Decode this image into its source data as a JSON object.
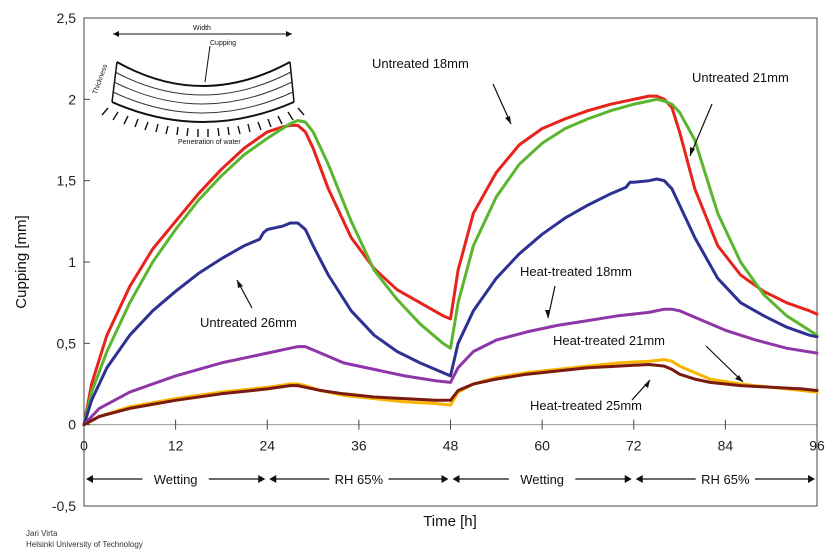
{
  "chart_data": {
    "type": "line",
    "xlabel": "Time [h]",
    "ylabel": "Cupping [mm]",
    "xlim": [
      0,
      96
    ],
    "ylim": [
      -0.5,
      2.5
    ],
    "x_ticks": [
      "0",
      "12",
      "24",
      "36",
      "48",
      "60",
      "72",
      "84",
      "96"
    ],
    "y_ticks": [
      "-0,5",
      "0",
      "0,5",
      "1",
      "1,5",
      "2",
      "2,5"
    ],
    "grid": false,
    "series": [
      {
        "name": "Untreated 18mm",
        "color": "#e8231c",
        "x": [
          0,
          1,
          3,
          6,
          9,
          12,
          15,
          18,
          21,
          24,
          26,
          27,
          28,
          29,
          30,
          32,
          35,
          38,
          41,
          44,
          47,
          48,
          49,
          51,
          54,
          57,
          60,
          63,
          66,
          69,
          72,
          74,
          75,
          76,
          77,
          78,
          80,
          83,
          86,
          89,
          92,
          95,
          96
        ],
        "y": [
          0,
          0.25,
          0.55,
          0.85,
          1.08,
          1.25,
          1.42,
          1.57,
          1.7,
          1.8,
          1.83,
          1.84,
          1.84,
          1.8,
          1.7,
          1.45,
          1.15,
          0.96,
          0.83,
          0.75,
          0.67,
          0.65,
          0.95,
          1.3,
          1.55,
          1.72,
          1.82,
          1.88,
          1.93,
          1.97,
          2,
          2.02,
          2.02,
          2,
          1.95,
          1.8,
          1.45,
          1.1,
          0.92,
          0.82,
          0.75,
          0.7,
          0.68
        ]
      },
      {
        "name": "Untreated 21mm",
        "color": "#5cb52e",
        "x": [
          0,
          1,
          3,
          6,
          9,
          12,
          15,
          18,
          21,
          24,
          26,
          27,
          28,
          29,
          30,
          32,
          35,
          38,
          41,
          44,
          47,
          48,
          49,
          51,
          54,
          57,
          60,
          63,
          66,
          69,
          72,
          74,
          75,
          76,
          77,
          78,
          80,
          83,
          86,
          89,
          92,
          95,
          96
        ],
        "y": [
          0,
          0.2,
          0.45,
          0.75,
          1.0,
          1.2,
          1.38,
          1.53,
          1.66,
          1.76,
          1.82,
          1.85,
          1.87,
          1.86,
          1.8,
          1.6,
          1.25,
          0.95,
          0.77,
          0.62,
          0.5,
          0.47,
          0.75,
          1.1,
          1.4,
          1.6,
          1.73,
          1.82,
          1.88,
          1.93,
          1.97,
          1.99,
          2,
          1.99,
          1.97,
          1.92,
          1.75,
          1.3,
          1.0,
          0.8,
          0.67,
          0.58,
          0.55
        ]
      },
      {
        "name": "Untreated 26mm",
        "color": "#2e3092",
        "x": [
          0,
          1,
          3,
          6,
          9,
          12,
          15,
          18,
          21,
          23,
          23.5,
          24,
          26,
          27,
          28,
          29,
          30,
          32,
          35,
          38,
          41,
          44,
          47,
          48,
          49,
          51,
          54,
          57,
          60,
          63,
          66,
          69,
          71,
          71.5,
          72,
          74,
          75,
          76,
          77,
          78,
          80,
          83,
          86,
          89,
          92,
          95,
          96
        ],
        "y": [
          0,
          0.15,
          0.35,
          0.55,
          0.7,
          0.82,
          0.93,
          1.02,
          1.1,
          1.14,
          1.18,
          1.2,
          1.22,
          1.24,
          1.24,
          1.2,
          1.1,
          0.92,
          0.7,
          0.55,
          0.45,
          0.38,
          0.32,
          0.3,
          0.5,
          0.7,
          0.9,
          1.05,
          1.17,
          1.27,
          1.35,
          1.42,
          1.46,
          1.49,
          1.49,
          1.5,
          1.51,
          1.5,
          1.45,
          1.35,
          1.15,
          0.9,
          0.75,
          0.67,
          0.6,
          0.55,
          0.54
        ]
      },
      {
        "name": "Heat-treated 18mm",
        "color": "#8e36a8",
        "x": [
          0,
          2,
          6,
          12,
          18,
          24,
          27,
          28,
          29,
          31,
          34,
          38,
          42,
          46,
          48,
          49,
          51,
          54,
          58,
          62,
          66,
          70,
          74,
          76,
          77,
          78,
          80,
          84,
          88,
          92,
          96
        ],
        "y": [
          0,
          0.1,
          0.2,
          0.3,
          0.38,
          0.44,
          0.47,
          0.48,
          0.48,
          0.44,
          0.38,
          0.34,
          0.3,
          0.27,
          0.26,
          0.35,
          0.45,
          0.52,
          0.57,
          0.61,
          0.64,
          0.67,
          0.69,
          0.71,
          0.71,
          0.7,
          0.66,
          0.58,
          0.52,
          0.47,
          0.44
        ]
      },
      {
        "name": "Heat-treated 21mm",
        "color": "#f7b500",
        "x": [
          0,
          2,
          6,
          12,
          18,
          24,
          27,
          28,
          29,
          31,
          34,
          38,
          42,
          46,
          48,
          49,
          51,
          54,
          58,
          62,
          66,
          70,
          74,
          76,
          77,
          78,
          80,
          82,
          86,
          90,
          94,
          96
        ],
        "y": [
          0,
          0.05,
          0.11,
          0.16,
          0.2,
          0.23,
          0.25,
          0.25,
          0.24,
          0.21,
          0.18,
          0.16,
          0.14,
          0.13,
          0.12,
          0.2,
          0.25,
          0.29,
          0.32,
          0.34,
          0.36,
          0.38,
          0.39,
          0.4,
          0.39,
          0.36,
          0.32,
          0.28,
          0.25,
          0.23,
          0.21,
          0.2
        ]
      },
      {
        "name": "Heat-treated 25mm",
        "color": "#7a1a10",
        "x": [
          0,
          2,
          6,
          12,
          18,
          24,
          27,
          28,
          29,
          31,
          34,
          38,
          42,
          46,
          48,
          49,
          51,
          54,
          58,
          62,
          66,
          70,
          74,
          76,
          77,
          78,
          80,
          82,
          86,
          90,
          94,
          96
        ],
        "y": [
          0,
          0.05,
          0.1,
          0.15,
          0.19,
          0.22,
          0.24,
          0.24,
          0.23,
          0.21,
          0.19,
          0.17,
          0.16,
          0.15,
          0.15,
          0.21,
          0.25,
          0.28,
          0.31,
          0.33,
          0.35,
          0.36,
          0.37,
          0.36,
          0.34,
          0.31,
          0.28,
          0.26,
          0.24,
          0.23,
          0.22,
          0.21
        ]
      }
    ],
    "annotations": [
      {
        "text": "Untreated 18mm"
      },
      {
        "text": "Untreated 21mm"
      },
      {
        "text": "Untreated 26mm"
      },
      {
        "text": "Heat-treated 18mm"
      },
      {
        "text": "Heat-treated 21mm"
      },
      {
        "text": "Heat-treated 25mm"
      }
    ],
    "phases": [
      {
        "label": "Wetting",
        "start": 0,
        "end": 24
      },
      {
        "label": "RH 65%",
        "start": 24,
        "end": 48
      },
      {
        "label": "Wetting",
        "start": 48,
        "end": 72
      },
      {
        "label": "RH 65%",
        "start": 72,
        "end": 96
      }
    ],
    "inset": {
      "width_label": "Width",
      "cupping_label": "Cupping",
      "penetration_label": "Penetration of water",
      "side_label": "Thickness"
    },
    "credit": {
      "author": "Jari Virta",
      "institution": "Helsinki University of Technology"
    }
  }
}
